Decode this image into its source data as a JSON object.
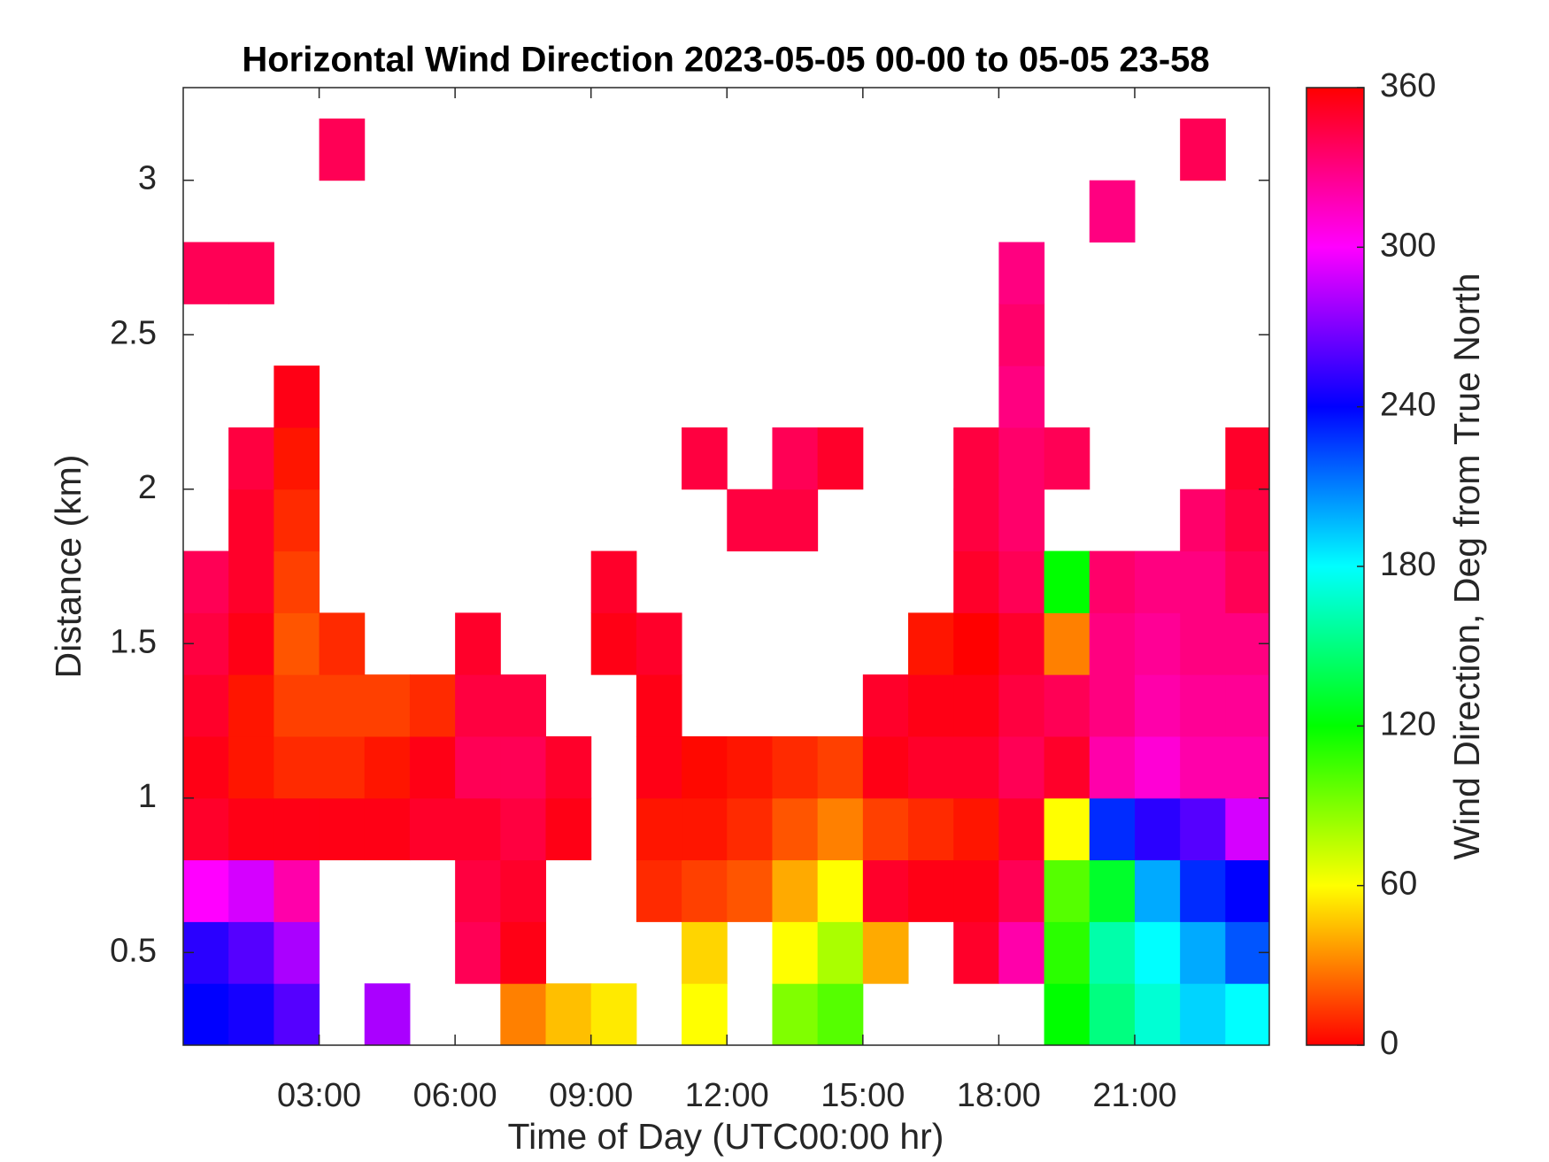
{
  "chart_data": {
    "type": "heatmap",
    "title": "Horizontal Wind Direction 2023-05-05 00-00 to 05-05 23-58",
    "xlabel": "Time of Day (UTC00:00 hr)",
    "ylabel": "Distance (km)",
    "colorbar_label": "Wind Direction, Deg from True North",
    "colormap": "hsv",
    "x": [
      0.5,
      1.5,
      2.5,
      3.5,
      4.5,
      5.5,
      6.5,
      7.5,
      8.5,
      9.5,
      10.5,
      11.5,
      12.5,
      13.5,
      14.5,
      15.5,
      16.5,
      17.5,
      18.5,
      19.5,
      20.5,
      21.5,
      22.5,
      23.5
    ],
    "y": [
      0.3,
      0.5,
      0.7,
      0.9,
      1.1,
      1.3,
      1.5,
      1.7,
      1.9,
      2.1,
      2.3,
      2.5,
      2.7,
      2.9,
      3.1
    ],
    "values": [
      [
        240,
        245,
        260,
        null,
        280,
        null,
        null,
        30,
        45,
        55,
        null,
        60,
        null,
        90,
        100,
        null,
        null,
        null,
        null,
        120,
        150,
        170,
        190,
        180
      ],
      [
        250,
        260,
        280,
        null,
        null,
        null,
        340,
        355,
        null,
        null,
        null,
        50,
        null,
        60,
        80,
        40,
        null,
        350,
        320,
        110,
        160,
        180,
        200,
        220
      ],
      [
        300,
        290,
        320,
        null,
        null,
        null,
        345,
        350,
        null,
        null,
        10,
        15,
        20,
        40,
        60,
        350,
        355,
        355,
        340,
        100,
        130,
        200,
        230,
        240
      ],
      [
        350,
        355,
        355,
        355,
        355,
        350,
        350,
        345,
        355,
        null,
        5,
        5,
        10,
        20,
        30,
        15,
        10,
        5,
        350,
        60,
        230,
        250,
        260,
        290
      ],
      [
        355,
        5,
        10,
        10,
        5,
        355,
        340,
        340,
        350,
        null,
        355,
        2,
        5,
        10,
        15,
        355,
        350,
        350,
        340,
        350,
        320,
        310,
        320,
        320
      ],
      [
        350,
        5,
        15,
        15,
        15,
        10,
        345,
        345,
        null,
        null,
        355,
        null,
        null,
        null,
        null,
        350,
        355,
        355,
        345,
        340,
        330,
        320,
        325,
        325
      ],
      [
        345,
        355,
        20,
        10,
        null,
        null,
        350,
        null,
        null,
        355,
        350,
        null,
        null,
        null,
        null,
        null,
        5,
        0,
        350,
        30,
        330,
        325,
        330,
        330
      ],
      [
        340,
        350,
        15,
        null,
        null,
        null,
        null,
        null,
        null,
        350,
        null,
        null,
        null,
        null,
        null,
        null,
        null,
        350,
        340,
        120,
        335,
        330,
        330,
        340
      ],
      [
        null,
        350,
        10,
        null,
        null,
        null,
        null,
        null,
        null,
        null,
        null,
        null,
        345,
        345,
        null,
        null,
        null,
        345,
        335,
        null,
        null,
        null,
        335,
        345
      ],
      [
        null,
        345,
        5,
        null,
        null,
        null,
        null,
        null,
        null,
        null,
        null,
        345,
        null,
        340,
        350,
        null,
        null,
        345,
        335,
        340,
        null,
        null,
        null,
        350
      ],
      [
        null,
        null,
        355,
        null,
        null,
        null,
        null,
        null,
        null,
        null,
        null,
        null,
        null,
        null,
        null,
        null,
        null,
        null,
        330,
        null,
        null,
        null,
        null,
        null
      ],
      [
        null,
        null,
        null,
        null,
        null,
        null,
        null,
        null,
        null,
        null,
        null,
        null,
        null,
        null,
        null,
        null,
        null,
        null,
        335,
        null,
        null,
        null,
        null,
        null
      ],
      [
        340,
        340,
        null,
        null,
        null,
        null,
        null,
        null,
        null,
        null,
        null,
        null,
        null,
        null,
        null,
        null,
        null,
        null,
        330,
        null,
        null,
        null,
        null,
        null
      ],
      [
        null,
        null,
        null,
        null,
        null,
        null,
        null,
        null,
        null,
        null,
        null,
        null,
        null,
        null,
        null,
        null,
        null,
        null,
        null,
        null,
        330,
        null,
        null,
        null
      ],
      [
        null,
        null,
        null,
        340,
        null,
        null,
        null,
        null,
        null,
        null,
        null,
        null,
        null,
        null,
        null,
        null,
        null,
        null,
        null,
        null,
        null,
        null,
        340,
        null
      ]
    ],
    "xlim": [
      0,
      23.97
    ],
    "xticks": [
      {
        "value": 3,
        "label": "03:00"
      },
      {
        "value": 6,
        "label": "06:00"
      },
      {
        "value": 9,
        "label": "09:00"
      },
      {
        "value": 12,
        "label": "12:00"
      },
      {
        "value": 15,
        "label": "15:00"
      },
      {
        "value": 18,
        "label": "18:00"
      },
      {
        "value": 21,
        "label": "21:00"
      }
    ],
    "ylim": [
      0.2,
      3.3
    ],
    "yticks": [
      0.5,
      1,
      1.5,
      2,
      2.5,
      3
    ],
    "clim": [
      0,
      360
    ],
    "cticks": [
      0,
      60,
      120,
      180,
      240,
      300,
      360
    ]
  }
}
